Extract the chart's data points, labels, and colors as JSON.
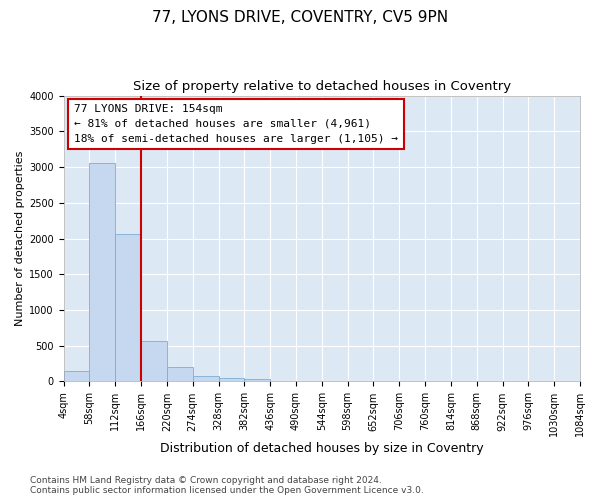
{
  "title": "77, LYONS DRIVE, COVENTRY, CV5 9PN",
  "subtitle": "Size of property relative to detached houses in Coventry",
  "xlabel": "Distribution of detached houses by size in Coventry",
  "ylabel": "Number of detached properties",
  "bar_values": [
    150,
    3060,
    2070,
    560,
    200,
    80,
    55,
    35,
    0,
    0,
    0,
    0,
    0,
    0,
    0,
    0,
    0,
    0,
    0,
    0
  ],
  "bin_edges": [
    "4sqm",
    "58sqm",
    "112sqm",
    "166sqm",
    "220sqm",
    "274sqm",
    "328sqm",
    "382sqm",
    "436sqm",
    "490sqm",
    "544sqm",
    "598sqm",
    "652sqm",
    "706sqm",
    "760sqm",
    "814sqm",
    "868sqm",
    "922sqm",
    "976sqm",
    "1030sqm",
    "1084sqm"
  ],
  "bar_color": "#c5d8f0",
  "bar_edge_color": "#7aadd4",
  "vline_color": "#cc0000",
  "vline_x_index": 3,
  "annotation_line1": "77 LYONS DRIVE: 154sqm",
  "annotation_line2": "← 81% of detached houses are smaller (4,961)",
  "annotation_line3": "18% of semi-detached houses are larger (1,105) →",
  "annotation_box_edgecolor": "#cc0000",
  "ylim": [
    0,
    4000
  ],
  "yticks": [
    0,
    500,
    1000,
    1500,
    2000,
    2500,
    3000,
    3500,
    4000
  ],
  "background_color": "#dde8f5",
  "grid_color": "#ffffff",
  "footer_text": "Contains HM Land Registry data © Crown copyright and database right 2024.\nContains public sector information licensed under the Open Government Licence v3.0.",
  "title_fontsize": 11,
  "subtitle_fontsize": 9.5,
  "xlabel_fontsize": 9,
  "ylabel_fontsize": 8,
  "tick_fontsize": 7,
  "footer_fontsize": 6.5,
  "ann_fontsize": 8
}
